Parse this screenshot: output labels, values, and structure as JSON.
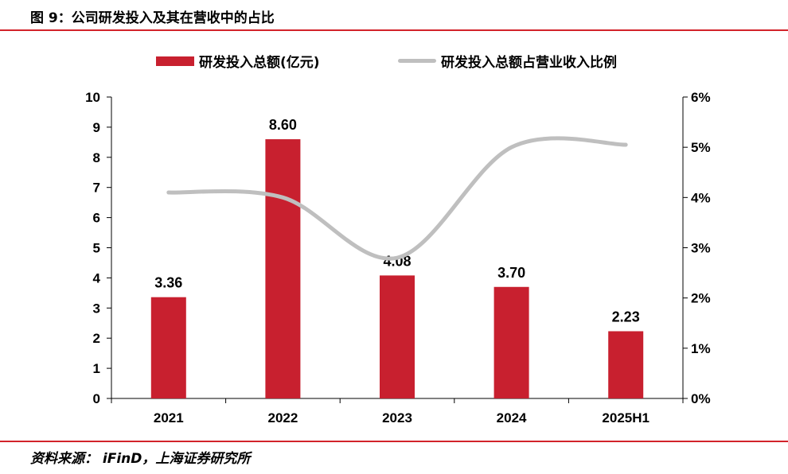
{
  "header": {
    "title": "图 9：公司研发投入及其在营收中的占比"
  },
  "footer": {
    "source": "资料来源：  iFinD，上海证券研究所"
  },
  "chart_data": {
    "type": "bar",
    "categories": [
      "2021",
      "2022",
      "2023",
      "2024",
      "2025H1"
    ],
    "series": [
      {
        "name": "研发投入总额(亿元)",
        "type": "bar",
        "axis": "left",
        "values": [
          3.36,
          8.6,
          4.08,
          3.7,
          2.23
        ],
        "labels": [
          "3.36",
          "8.60",
          "4.08",
          "3.70",
          "2.23"
        ]
      },
      {
        "name": "研发投入总额占营业收入比例",
        "type": "line",
        "axis": "right",
        "smooth": true,
        "values": [
          4.1,
          4.0,
          2.8,
          5.0,
          5.05
        ]
      }
    ],
    "y_left": {
      "range": [
        0,
        10
      ],
      "ticks": [
        "0",
        "1",
        "2",
        "3",
        "4",
        "5",
        "6",
        "7",
        "8",
        "9",
        "10"
      ]
    },
    "y_right": {
      "range": [
        0,
        6
      ],
      "ticks": [
        "0%",
        "1%",
        "2%",
        "3%",
        "4%",
        "5%",
        "6%"
      ]
    },
    "legend": "top",
    "grid": false,
    "colors": {
      "bar": "#c8202f",
      "line": "#bfbfbf",
      "accent": "#d2232a"
    }
  }
}
